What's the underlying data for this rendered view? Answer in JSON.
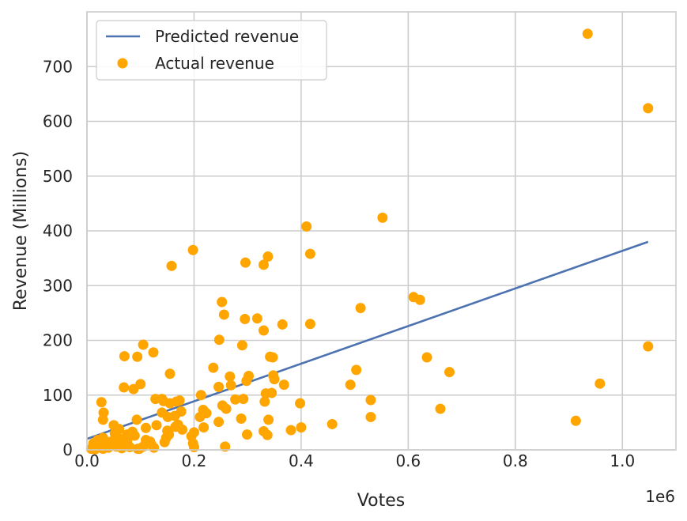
{
  "chart_data": {
    "type": "scatter",
    "xlabel": "Votes",
    "ylabel": "Revenue (Millions)",
    "x_offset_label": "1e6",
    "xlim": [
      0,
      1.1
    ],
    "ylim": [
      0,
      800
    ],
    "x_ticks": [
      0.0,
      0.2,
      0.4,
      0.6,
      0.8,
      1.0
    ],
    "x_tick_labels": [
      "0.0",
      "0.2",
      "0.4",
      "0.6",
      "0.8",
      "1.0"
    ],
    "y_ticks": [
      0,
      100,
      200,
      300,
      400,
      500,
      600,
      700
    ],
    "y_tick_labels": [
      "0",
      "100",
      "200",
      "300",
      "400",
      "500",
      "600",
      "700"
    ],
    "grid": true,
    "legend_position": "top-left",
    "colors": {
      "line": "#4c72b0",
      "points": "#ffa500",
      "grid": "#cccccc",
      "frame": "#cccccc"
    },
    "series": [
      {
        "name": "Predicted revenue",
        "kind": "line",
        "x": [
          0.0,
          1.048
        ],
        "y": [
          20,
          380
        ]
      },
      {
        "name": "Actual revenue",
        "kind": "scatter",
        "points": [
          [
            0.935,
            760
          ],
          [
            1.048,
            624
          ],
          [
            1.048,
            189
          ],
          [
            0.958,
            121
          ],
          [
            0.913,
            53
          ],
          [
            0.552,
            424
          ],
          [
            0.41,
            408
          ],
          [
            0.417,
            358
          ],
          [
            0.338,
            353
          ],
          [
            0.296,
            342
          ],
          [
            0.33,
            338
          ],
          [
            0.158,
            336
          ],
          [
            0.198,
            365
          ],
          [
            0.61,
            279
          ],
          [
            0.622,
            274
          ],
          [
            0.252,
            270
          ],
          [
            0.511,
            259
          ],
          [
            0.256,
            247
          ],
          [
            0.295,
            239
          ],
          [
            0.318,
            240
          ],
          [
            0.365,
            229
          ],
          [
            0.417,
            230
          ],
          [
            0.33,
            218
          ],
          [
            0.247,
            201
          ],
          [
            0.105,
            192
          ],
          [
            0.29,
            191
          ],
          [
            0.124,
            178
          ],
          [
            0.07,
            171
          ],
          [
            0.094,
            170
          ],
          [
            0.342,
            170
          ],
          [
            0.347,
            169
          ],
          [
            0.635,
            169
          ],
          [
            0.503,
            146
          ],
          [
            0.677,
            142
          ],
          [
            0.236,
            150
          ],
          [
            0.155,
            139
          ],
          [
            0.267,
            134
          ],
          [
            0.302,
            135
          ],
          [
            0.348,
            136
          ],
          [
            0.35,
            129
          ],
          [
            0.298,
            126
          ],
          [
            0.269,
            118
          ],
          [
            0.246,
            115
          ],
          [
            0.368,
            119
          ],
          [
            0.492,
            119
          ],
          [
            0.069,
            114
          ],
          [
            0.087,
            111
          ],
          [
            0.1,
            120
          ],
          [
            0.334,
            103
          ],
          [
            0.345,
            104
          ],
          [
            0.213,
            100
          ],
          [
            0.277,
            92
          ],
          [
            0.292,
            93
          ],
          [
            0.53,
            91
          ],
          [
            0.128,
            93
          ],
          [
            0.14,
            93
          ],
          [
            0.143,
            89
          ],
          [
            0.155,
            85
          ],
          [
            0.167,
            88
          ],
          [
            0.173,
            90
          ],
          [
            0.027,
            87
          ],
          [
            0.332,
            88
          ],
          [
            0.398,
            85
          ],
          [
            0.253,
            81
          ],
          [
            0.26,
            75
          ],
          [
            0.217,
            73
          ],
          [
            0.223,
            67
          ],
          [
            0.211,
            60
          ],
          [
            0.14,
            68
          ],
          [
            0.151,
            60
          ],
          [
            0.176,
            70
          ],
          [
            0.031,
            68
          ],
          [
            0.03,
            55
          ],
          [
            0.093,
            55
          ],
          [
            0.164,
            62
          ],
          [
            0.66,
            75
          ],
          [
            0.53,
            60
          ],
          [
            0.339,
            55
          ],
          [
            0.288,
            57
          ],
          [
            0.246,
            51
          ],
          [
            0.218,
            41
          ],
          [
            0.458,
            47
          ],
          [
            0.4,
            41
          ],
          [
            0.381,
            36
          ],
          [
            0.33,
            34
          ],
          [
            0.337,
            27
          ],
          [
            0.299,
            28
          ],
          [
            0.13,
            45
          ],
          [
            0.17,
            46
          ],
          [
            0.178,
            37
          ],
          [
            0.165,
            42
          ],
          [
            0.05,
            45
          ],
          [
            0.06,
            38
          ],
          [
            0.052,
            30
          ],
          [
            0.075,
            28
          ],
          [
            0.085,
            33
          ],
          [
            0.11,
            40
          ],
          [
            0.15,
            35
          ],
          [
            0.153,
            28
          ],
          [
            0.148,
            22
          ],
          [
            0.195,
            25
          ],
          [
            0.2,
            32
          ],
          [
            0.089,
            26
          ],
          [
            0.03,
            22
          ],
          [
            0.02,
            18
          ],
          [
            0.045,
            15
          ],
          [
            0.06,
            12
          ],
          [
            0.075,
            16
          ],
          [
            0.11,
            18
          ],
          [
            0.12,
            10
          ],
          [
            0.145,
            14
          ],
          [
            0.012,
            12
          ],
          [
            0.018,
            6
          ],
          [
            0.025,
            9
          ],
          [
            0.04,
            4
          ],
          [
            0.055,
            6
          ],
          [
            0.065,
            3
          ],
          [
            0.08,
            5
          ],
          [
            0.095,
            2
          ],
          [
            0.105,
            6
          ],
          [
            0.125,
            4
          ],
          [
            0.198,
            12
          ],
          [
            0.2,
            5
          ],
          [
            0.258,
            6
          ],
          [
            0.008,
            2
          ],
          [
            0.015,
            1
          ],
          [
            0.03,
            2
          ],
          [
            0.035,
            7
          ],
          [
            0.048,
            10
          ],
          [
            0.062,
            20
          ],
          [
            0.098,
            2
          ],
          [
            0.118,
            15
          ]
        ]
      }
    ]
  }
}
